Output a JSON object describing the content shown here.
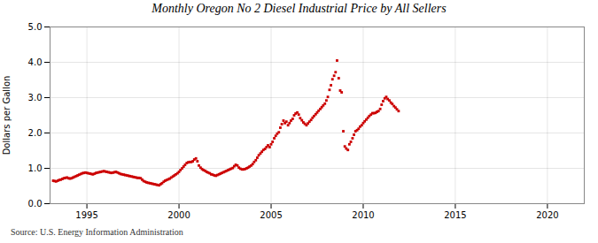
{
  "chart_data": {
    "type": "scatter",
    "title": "Monthly Oregon No 2 Diesel Industrial Price by All Sellers",
    "ylabel": "Dollars per Gallon",
    "annotation": "Source: U.S. Energy Information Administration",
    "color": "#cc0000",
    "marker": "square",
    "grid": true,
    "xlim": [
      1993.0,
      2022.0
    ],
    "xticks": [
      1995,
      2000,
      2005,
      2010,
      2015,
      2020
    ],
    "ylim": [
      0.0,
      5.0
    ],
    "yticks": [
      {
        "value": 0.0,
        "label": "0.0"
      },
      {
        "value": 1.0,
        "label": "1.0"
      },
      {
        "value": 2.0,
        "label": "2.0"
      },
      {
        "value": 3.0,
        "label": "3.0"
      },
      {
        "value": 4.0,
        "label": "4.0"
      },
      {
        "value": 5.0,
        "label": "5.0"
      }
    ],
    "x": [
      1993.17,
      1993.25,
      1993.33,
      1993.42,
      1993.5,
      1993.58,
      1993.67,
      1993.75,
      1993.83,
      1993.92,
      1994.0,
      1994.08,
      1994.17,
      1994.25,
      1994.33,
      1994.42,
      1994.5,
      1994.58,
      1994.67,
      1994.75,
      1994.83,
      1994.92,
      1995.0,
      1995.08,
      1995.17,
      1995.25,
      1995.33,
      1995.42,
      1995.5,
      1995.58,
      1995.67,
      1995.75,
      1995.83,
      1995.92,
      1996.0,
      1996.08,
      1996.17,
      1996.25,
      1996.33,
      1996.42,
      1996.5,
      1996.58,
      1996.67,
      1996.75,
      1996.83,
      1996.92,
      1997.0,
      1997.08,
      1997.17,
      1997.25,
      1997.33,
      1997.42,
      1997.5,
      1997.58,
      1997.67,
      1997.75,
      1997.83,
      1997.92,
      1998.0,
      1998.08,
      1998.17,
      1998.25,
      1998.33,
      1998.42,
      1998.5,
      1998.58,
      1998.67,
      1998.75,
      1998.83,
      1998.92,
      1999.0,
      1999.08,
      1999.17,
      1999.25,
      1999.33,
      1999.42,
      1999.5,
      1999.58,
      1999.67,
      1999.75,
      1999.83,
      1999.92,
      2000.0,
      2000.08,
      2000.17,
      2000.25,
      2000.33,
      2000.42,
      2000.5,
      2000.58,
      2000.67,
      2000.75,
      2000.83,
      2000.92,
      2001.0,
      2001.08,
      2001.17,
      2001.25,
      2001.33,
      2001.42,
      2001.5,
      2001.58,
      2001.67,
      2001.75,
      2001.83,
      2001.92,
      2002.0,
      2002.08,
      2002.17,
      2002.25,
      2002.33,
      2002.42,
      2002.5,
      2002.58,
      2002.67,
      2002.75,
      2002.83,
      2002.92,
      2003.0,
      2003.08,
      2003.17,
      2003.25,
      2003.33,
      2003.42,
      2003.5,
      2003.58,
      2003.67,
      2003.75,
      2003.83,
      2003.92,
      2004.0,
      2004.08,
      2004.17,
      2004.25,
      2004.33,
      2004.42,
      2004.5,
      2004.58,
      2004.67,
      2004.75,
      2004.83,
      2004.92,
      2005.0,
      2005.08,
      2005.17,
      2005.25,
      2005.33,
      2005.42,
      2005.5,
      2005.58,
      2005.67,
      2005.75,
      2005.83,
      2005.92,
      2006.0,
      2006.08,
      2006.17,
      2006.25,
      2006.33,
      2006.42,
      2006.5,
      2006.58,
      2006.67,
      2006.75,
      2006.83,
      2006.92,
      2007.0,
      2007.08,
      2007.17,
      2007.25,
      2007.33,
      2007.42,
      2007.5,
      2007.58,
      2007.67,
      2007.75,
      2007.83,
      2007.92,
      2008.0,
      2008.08,
      2008.17,
      2008.25,
      2008.33,
      2008.42,
      2008.5,
      2008.58,
      2008.67,
      2008.75,
      2008.83,
      2008.92,
      2009.0,
      2009.08,
      2009.17,
      2009.25,
      2009.33,
      2009.42,
      2009.5,
      2009.58,
      2009.67,
      2009.75,
      2009.83,
      2009.92,
      2010.0,
      2010.08,
      2010.17,
      2010.25,
      2010.33,
      2010.42,
      2010.5,
      2010.58,
      2010.67,
      2010.75,
      2010.83,
      2010.92,
      2011.0,
      2011.08,
      2011.17,
      2011.25,
      2011.33,
      2011.42,
      2011.5,
      2011.58,
      2011.67,
      2011.75,
      2011.83,
      2011.92
    ],
    "values": [
      0.65,
      0.64,
      0.63,
      0.65,
      0.67,
      0.68,
      0.7,
      0.72,
      0.73,
      0.74,
      0.72,
      0.71,
      0.72,
      0.74,
      0.76,
      0.78,
      0.8,
      0.82,
      0.84,
      0.86,
      0.87,
      0.88,
      0.87,
      0.86,
      0.85,
      0.84,
      0.83,
      0.85,
      0.87,
      0.88,
      0.89,
      0.9,
      0.91,
      0.92,
      0.91,
      0.9,
      0.89,
      0.88,
      0.87,
      0.88,
      0.89,
      0.9,
      0.88,
      0.86,
      0.84,
      0.83,
      0.82,
      0.81,
      0.8,
      0.79,
      0.78,
      0.77,
      0.76,
      0.75,
      0.74,
      0.73,
      0.73,
      0.72,
      0.68,
      0.64,
      0.62,
      0.6,
      0.59,
      0.58,
      0.57,
      0.56,
      0.55,
      0.54,
      0.53,
      0.52,
      0.55,
      0.58,
      0.62,
      0.65,
      0.67,
      0.69,
      0.71,
      0.74,
      0.77,
      0.8,
      0.83,
      0.86,
      0.9,
      0.95,
      1.0,
      1.05,
      1.1,
      1.15,
      1.17,
      1.18,
      1.18,
      1.2,
      1.25,
      1.28,
      1.2,
      1.08,
      1.02,
      0.98,
      0.95,
      0.93,
      0.9,
      0.88,
      0.86,
      0.83,
      0.82,
      0.8,
      0.79,
      0.81,
      0.83,
      0.85,
      0.87,
      0.89,
      0.91,
      0.93,
      0.95,
      0.97,
      0.99,
      1.01,
      1.06,
      1.1,
      1.08,
      1.02,
      0.99,
      0.97,
      0.97,
      0.98,
      1.0,
      1.02,
      1.05,
      1.08,
      1.12,
      1.18,
      1.23,
      1.3,
      1.37,
      1.42,
      1.47,
      1.52,
      1.55,
      1.6,
      1.65,
      1.6,
      1.68,
      1.75,
      1.85,
      1.92,
      1.98,
      2.02,
      2.15,
      2.25,
      2.35,
      2.28,
      2.32,
      2.22,
      2.28,
      2.35,
      2.4,
      2.5,
      2.55,
      2.58,
      2.52,
      2.42,
      2.36,
      2.3,
      2.26,
      2.22,
      2.27,
      2.32,
      2.37,
      2.43,
      2.48,
      2.53,
      2.58,
      2.63,
      2.68,
      2.73,
      2.78,
      2.83,
      2.92,
      3.02,
      3.22,
      3.35,
      3.52,
      3.62,
      3.72,
      4.05,
      3.55,
      3.2,
      3.15,
      2.05,
      1.62,
      1.56,
      1.52,
      1.68,
      1.75,
      1.85,
      1.95,
      2.05,
      2.08,
      2.12,
      2.18,
      2.22,
      2.28,
      2.33,
      2.38,
      2.43,
      2.48,
      2.52,
      2.56,
      2.56,
      2.57,
      2.6,
      2.62,
      2.68,
      2.8,
      2.9,
      2.98,
      3.02,
      2.96,
      2.92,
      2.86,
      2.82,
      2.76,
      2.72,
      2.67,
      2.62
    ]
  }
}
